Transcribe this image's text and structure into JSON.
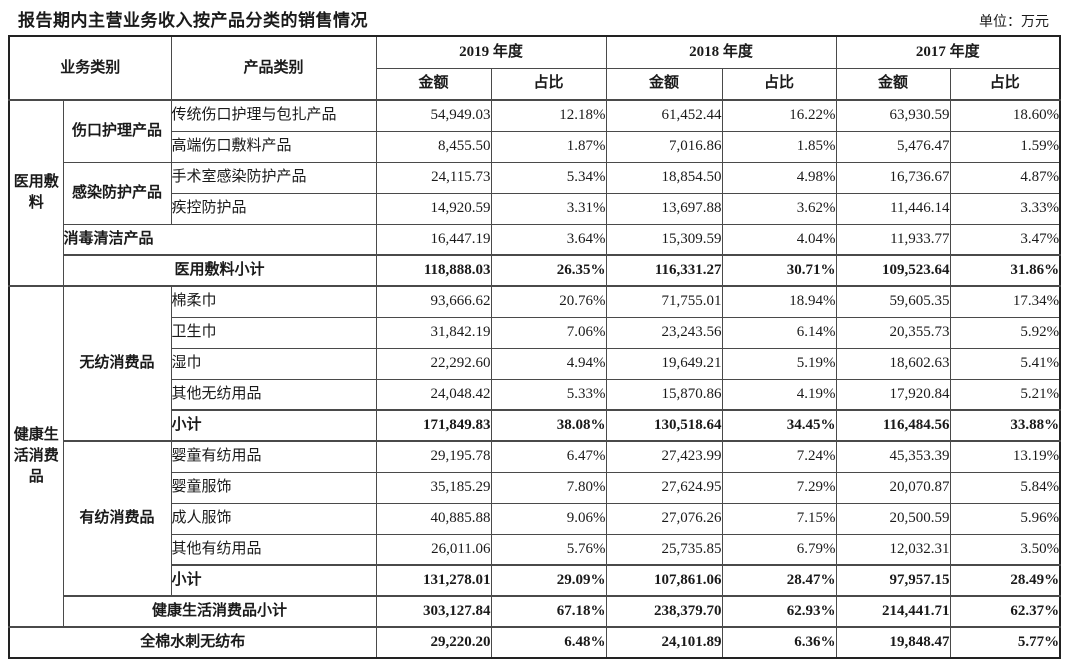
{
  "title": "报告期内主营业务收入按产品分类的销售情况",
  "unit_label": "单位：万元",
  "table": {
    "header": {
      "business": "业务类别",
      "product": "产品类别",
      "y2019": "2019 年度",
      "y2018": "2018 年度",
      "y2017": "2017 年度",
      "amount": "金额",
      "ratio": "占比"
    },
    "rows": [
      {
        "bold": false,
        "strong_top": false,
        "labels": [
          {
            "text": "医用敷料",
            "rowspan": 6,
            "cls": "cat",
            "name": "business-category-cell"
          },
          {
            "text": "伤口护理产品",
            "rowspan": 2,
            "cls": "cat",
            "name": "product-group-cell"
          },
          {
            "text": "传统伤口护理与包扎产品",
            "cls": "prod",
            "name": "product-name-cell"
          }
        ],
        "values": [
          "54,949.03",
          "12.18%",
          "61,452.44",
          "16.22%",
          "63,930.59",
          "18.60%"
        ]
      },
      {
        "bold": false,
        "strong_top": false,
        "labels": [
          {
            "text": "高端伤口敷料产品",
            "cls": "prod",
            "name": "product-name-cell"
          }
        ],
        "values": [
          "8,455.50",
          "1.87%",
          "7,016.86",
          "1.85%",
          "5,476.47",
          "1.59%"
        ]
      },
      {
        "bold": false,
        "strong_top": false,
        "labels": [
          {
            "text": "感染防护产品",
            "rowspan": 2,
            "cls": "cat",
            "name": "product-group-cell"
          },
          {
            "text": "手术室感染防护产品",
            "cls": "prod",
            "name": "product-name-cell"
          }
        ],
        "values": [
          "24,115.73",
          "5.34%",
          "18,854.50",
          "4.98%",
          "16,736.67",
          "4.87%"
        ]
      },
      {
        "bold": false,
        "strong_top": false,
        "labels": [
          {
            "text": "疾控防护品",
            "cls": "prod",
            "name": "product-name-cell"
          }
        ],
        "values": [
          "14,920.59",
          "3.31%",
          "13,697.88",
          "3.62%",
          "11,446.14",
          "3.33%"
        ]
      },
      {
        "bold": false,
        "strong_top": false,
        "labels": [
          {
            "text": "消毒清洁产品",
            "colspan": 2,
            "cls": "cat-left",
            "name": "product-group-cell"
          }
        ],
        "values": [
          "16,447.19",
          "3.64%",
          "15,309.59",
          "4.04%",
          "11,933.77",
          "3.47%"
        ]
      },
      {
        "bold": true,
        "strong_top": true,
        "labels": [
          {
            "text": "医用敷料小计",
            "colspan": 2,
            "cls": "subtotal-center",
            "name": "subtotal-label-cell"
          }
        ],
        "values": [
          "118,888.03",
          "26.35%",
          "116,331.27",
          "30.71%",
          "109,523.64",
          "31.86%"
        ]
      },
      {
        "bold": false,
        "strong_top": true,
        "labels": [
          {
            "text": "健康生活消费品",
            "rowspan": 11,
            "cls": "cat",
            "name": "business-category-cell"
          },
          {
            "text": "无纺消费品",
            "rowspan": 5,
            "cls": "cat",
            "name": "product-group-cell"
          },
          {
            "text": "棉柔巾",
            "cls": "prod",
            "name": "product-name-cell"
          }
        ],
        "values": [
          "93,666.62",
          "20.76%",
          "71,755.01",
          "18.94%",
          "59,605.35",
          "17.34%"
        ]
      },
      {
        "bold": false,
        "strong_top": false,
        "labels": [
          {
            "text": "卫生巾",
            "cls": "prod",
            "name": "product-name-cell"
          }
        ],
        "values": [
          "31,842.19",
          "7.06%",
          "23,243.56",
          "6.14%",
          "20,355.73",
          "5.92%"
        ]
      },
      {
        "bold": false,
        "strong_top": false,
        "labels": [
          {
            "text": "湿巾",
            "cls": "prod",
            "name": "product-name-cell"
          }
        ],
        "values": [
          "22,292.60",
          "4.94%",
          "19,649.21",
          "5.19%",
          "18,602.63",
          "5.41%"
        ]
      },
      {
        "bold": false,
        "strong_top": false,
        "labels": [
          {
            "text": "其他无纺用品",
            "cls": "prod",
            "name": "product-name-cell"
          }
        ],
        "values": [
          "24,048.42",
          "5.33%",
          "15,870.86",
          "4.19%",
          "17,920.84",
          "5.21%"
        ]
      },
      {
        "bold": true,
        "strong_top": true,
        "labels": [
          {
            "text": "小计",
            "cls": "subtotal-left",
            "name": "subtotal-label-cell"
          }
        ],
        "values": [
          "171,849.83",
          "38.08%",
          "130,518.64",
          "34.45%",
          "116,484.56",
          "33.88%"
        ]
      },
      {
        "bold": false,
        "strong_top": true,
        "labels": [
          {
            "text": "有纺消费品",
            "rowspan": 5,
            "cls": "cat",
            "name": "product-group-cell"
          },
          {
            "text": "婴童有纺用品",
            "cls": "prod",
            "name": "product-name-cell"
          }
        ],
        "values": [
          "29,195.78",
          "6.47%",
          "27,423.99",
          "7.24%",
          "45,353.39",
          "13.19%"
        ]
      },
      {
        "bold": false,
        "strong_top": false,
        "labels": [
          {
            "text": "婴童服饰",
            "cls": "prod",
            "name": "product-name-cell"
          }
        ],
        "values": [
          "35,185.29",
          "7.80%",
          "27,624.95",
          "7.29%",
          "20,070.87",
          "5.84%"
        ]
      },
      {
        "bold": false,
        "strong_top": false,
        "labels": [
          {
            "text": "成人服饰",
            "cls": "prod",
            "name": "product-name-cell"
          }
        ],
        "values": [
          "40,885.88",
          "9.06%",
          "27,076.26",
          "7.15%",
          "20,500.59",
          "5.96%"
        ]
      },
      {
        "bold": false,
        "strong_top": false,
        "labels": [
          {
            "text": "其他有纺用品",
            "cls": "prod",
            "name": "product-name-cell"
          }
        ],
        "values": [
          "26,011.06",
          "5.76%",
          "25,735.85",
          "6.79%",
          "12,032.31",
          "3.50%"
        ]
      },
      {
        "bold": true,
        "strong_top": true,
        "labels": [
          {
            "text": "小计",
            "cls": "subtotal-left",
            "name": "subtotal-label-cell"
          }
        ],
        "values": [
          "131,278.01",
          "29.09%",
          "107,861.06",
          "28.47%",
          "97,957.15",
          "28.49%"
        ]
      },
      {
        "bold": true,
        "strong_top": true,
        "labels": [
          {
            "text": "健康生活消费品小计",
            "colspan": 2,
            "cls": "subtotal-center",
            "name": "subtotal-label-cell"
          }
        ],
        "values": [
          "303,127.84",
          "67.18%",
          "238,379.70",
          "62.93%",
          "214,441.71",
          "62.37%"
        ]
      },
      {
        "bold": true,
        "strong_top": true,
        "labels": [
          {
            "text": "全棉水刺无纺布",
            "colspan": 3,
            "cls": "subtotal-center",
            "name": "subtotal-label-cell"
          }
        ],
        "values": [
          "29,220.20",
          "6.48%",
          "24,101.89",
          "6.36%",
          "19,848.47",
          "5.77%"
        ]
      }
    ]
  }
}
